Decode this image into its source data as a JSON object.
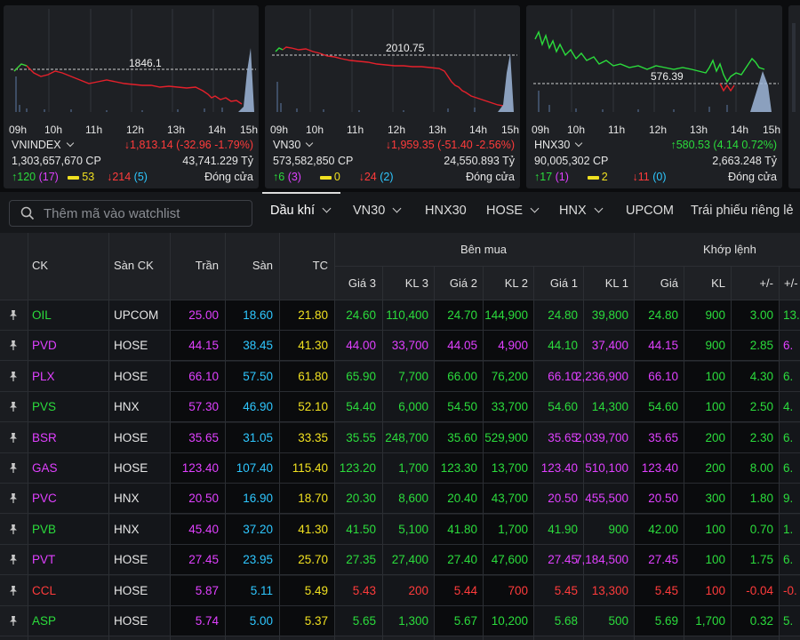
{
  "indices": [
    {
      "ref_value": "1846.1",
      "ticks": [
        "09h",
        "10h",
        "11h",
        "12h",
        "13h",
        "14h",
        "15h"
      ],
      "name": "VNINDEX",
      "change_text": "↓1,813.14 (-32.96 -1.79%)",
      "volume": "1,303,657,670 CP",
      "value": "43,741.229 Tỷ",
      "up": "↑120",
      "up_ceiling": "(17)",
      "flat": "53",
      "down": "↓214",
      "down_floor": "(5)",
      "status": "Đóng cửa"
    },
    {
      "ref_value": "2010.75",
      "ticks": [
        "09h",
        "10h",
        "11h",
        "12h",
        "13h",
        "14h",
        "15h"
      ],
      "name": "VN30",
      "change_text": "↓1,959.35 (-51.40 -2.56%)",
      "volume": "573,582,850 CP",
      "value": "24,550.893 Tỷ",
      "up": "↑6",
      "up_ceiling": "(3)",
      "flat": "0",
      "down": "↓24",
      "down_floor": "(2)",
      "status": "Đóng cửa"
    },
    {
      "ref_value": "576.39",
      "ticks": [
        "09h",
        "10h",
        "11h",
        "12h",
        "13h",
        "14h",
        "15h"
      ],
      "name": "HNX30",
      "change_text": "↑580.53 (4.14 0.72%)",
      "volume": "90,005,302 CP",
      "value": "2,663.248 Tỷ",
      "up": "↑17",
      "up_ceiling": "(1)",
      "flat": "2",
      "down": "↓11",
      "down_floor": "(0)",
      "status": "Đóng cửa"
    }
  ],
  "search": {
    "placeholder": "Thêm mã vào watchlist"
  },
  "tabs": [
    {
      "label": "Dầu khí",
      "dropdown": true,
      "active": true
    },
    {
      "label": "VN30",
      "dropdown": true
    },
    {
      "label": "HNX30",
      "dropdown": false
    },
    {
      "label": "HOSE",
      "dropdown": true
    },
    {
      "label": "HNX",
      "dropdown": true
    },
    {
      "label": "UPCOM",
      "dropdown": false
    },
    {
      "label": "Trái phiếu riêng lẻ",
      "dropdown": false
    }
  ],
  "table": {
    "headers": {
      "ck": "CK",
      "san_ck": "Sàn CK",
      "tran": "Trần",
      "san": "Sàn",
      "tc": "TC",
      "ben_mua": "Bên mua",
      "khop_lenh": "Khớp lệnh",
      "gia3": "Giá 3",
      "kl3": "KL 3",
      "gia2": "Giá 2",
      "kl2": "KL 2",
      "gia1": "Giá 1",
      "kl1": "KL 1",
      "gia": "Giá",
      "kl": "KL",
      "pm": "+/-",
      "pm_cut": "+/-"
    },
    "rows": [
      {
        "ck": "OIL",
        "san_ck": "UPCOM",
        "tran": "25.00",
        "san": "18.60",
        "tc": "21.80",
        "gia3": "24.60",
        "kl3": "110,400",
        "gia2": "24.70",
        "kl2": "144,900",
        "gia1": "24.80",
        "kl1": "39,800",
        "gia": "24.80",
        "kl": "900",
        "pm": "3.00",
        "cut": "13.",
        "color": "green"
      },
      {
        "ck": "PVD",
        "san_ck": "HOSE",
        "tran": "44.15",
        "san": "38.45",
        "tc": "41.30",
        "gia3": "44.00",
        "kl3": "33,700",
        "gia2": "44.05",
        "kl2": "4,900",
        "gia1": "44.10",
        "kl1": "37,400",
        "gia": "44.15",
        "kl": "900",
        "pm": "2.85",
        "cut": "6.",
        "color": "mag",
        "ck_color": "mag",
        "gia1_color": "green",
        "gia_color": "mag",
        "kl_color": "green",
        "pm_color": "green"
      },
      {
        "ck": "PLX",
        "san_ck": "HOSE",
        "tran": "66.10",
        "san": "57.50",
        "tc": "61.80",
        "gia3": "65.90",
        "kl3": "7,700",
        "gia2": "66.00",
        "kl2": "76,200",
        "gia1": "66.10",
        "kl1": "2,236,900",
        "gia": "66.10",
        "kl": "100",
        "pm": "4.30",
        "cut": "6.",
        "color": "green",
        "ck_color": "mag",
        "gia1_color": "mag",
        "kl1_color": "mag",
        "gia_color": "mag"
      },
      {
        "ck": "PVS",
        "san_ck": "HNX",
        "tran": "57.30",
        "san": "46.90",
        "tc": "52.10",
        "gia3": "54.40",
        "kl3": "6,000",
        "gia2": "54.50",
        "kl2": "33,700",
        "gia1": "54.60",
        "kl1": "14,300",
        "gia": "54.60",
        "kl": "100",
        "pm": "2.50",
        "cut": "4.",
        "color": "green"
      },
      {
        "ck": "BSR",
        "san_ck": "HOSE",
        "tran": "35.65",
        "san": "31.05",
        "tc": "33.35",
        "gia3": "35.55",
        "kl3": "248,700",
        "gia2": "35.60",
        "kl2": "529,900",
        "gia1": "35.65",
        "kl1": "2,039,700",
        "gia": "35.65",
        "kl": "200",
        "pm": "2.30",
        "cut": "6.",
        "color": "green",
        "ck_color": "mag",
        "gia1_color": "mag",
        "kl1_color": "mag",
        "gia_color": "mag"
      },
      {
        "ck": "GAS",
        "san_ck": "HOSE",
        "tran": "123.40",
        "san": "107.40",
        "tc": "115.40",
        "gia3": "123.20",
        "kl3": "1,700",
        "gia2": "123.30",
        "kl2": "13,700",
        "gia1": "123.40",
        "kl1": "510,100",
        "gia": "123.40",
        "kl": "200",
        "pm": "8.00",
        "cut": "6.",
        "color": "green",
        "ck_color": "mag",
        "gia1_color": "mag",
        "kl1_color": "mag",
        "gia_color": "mag"
      },
      {
        "ck": "PVC",
        "san_ck": "HNX",
        "tran": "20.50",
        "san": "16.90",
        "tc": "18.70",
        "gia3": "20.30",
        "kl3": "8,600",
        "gia2": "20.40",
        "kl2": "43,700",
        "gia1": "20.50",
        "kl1": "455,500",
        "gia": "20.50",
        "kl": "300",
        "pm": "1.80",
        "cut": "9.",
        "color": "green",
        "ck_color": "mag",
        "gia1_color": "mag",
        "kl1_color": "mag",
        "gia_color": "mag"
      },
      {
        "ck": "PVB",
        "san_ck": "HNX",
        "tran": "45.40",
        "san": "37.20",
        "tc": "41.30",
        "gia3": "41.50",
        "kl3": "5,100",
        "gia2": "41.80",
        "kl2": "1,700",
        "gia1": "41.90",
        "kl1": "900",
        "gia": "42.00",
        "kl": "100",
        "pm": "0.70",
        "cut": "1.",
        "color": "green"
      },
      {
        "ck": "PVT",
        "san_ck": "HOSE",
        "tran": "27.45",
        "san": "23.95",
        "tc": "25.70",
        "gia3": "27.35",
        "kl3": "27,400",
        "gia2": "27.40",
        "kl2": "47,600",
        "gia1": "27.45",
        "kl1": "7,184,500",
        "gia": "27.45",
        "kl": "100",
        "pm": "1.75",
        "cut": "6.",
        "color": "green",
        "ck_color": "mag",
        "gia1_color": "mag",
        "kl1_color": "mag",
        "gia_color": "mag"
      },
      {
        "ck": "CCL",
        "san_ck": "HOSE",
        "tran": "5.87",
        "san": "5.11",
        "tc": "5.49",
        "gia3": "5.43",
        "kl3": "200",
        "gia2": "5.44",
        "kl2": "700",
        "gia1": "5.45",
        "kl1": "13,300",
        "gia": "5.45",
        "kl": "100",
        "pm": "-0.04",
        "cut": "-0.",
        "color": "red"
      },
      {
        "ck": "ASP",
        "san_ck": "HOSE",
        "tran": "5.74",
        "san": "5.00",
        "tc": "5.37",
        "gia3": "5.65",
        "kl3": "1,300",
        "gia2": "5.67",
        "kl2": "10,200",
        "gia1": "5.68",
        "kl1": "500",
        "gia": "5.69",
        "kl": "1,700",
        "pm": "0.32",
        "cut": "5.",
        "color": "green"
      }
    ]
  },
  "colors": {
    "up": "#2bdc3c",
    "down": "#ff3b3b",
    "ref": "#f0e020",
    "ceiling": "#e040ff",
    "floor": "#2ec7ff"
  }
}
